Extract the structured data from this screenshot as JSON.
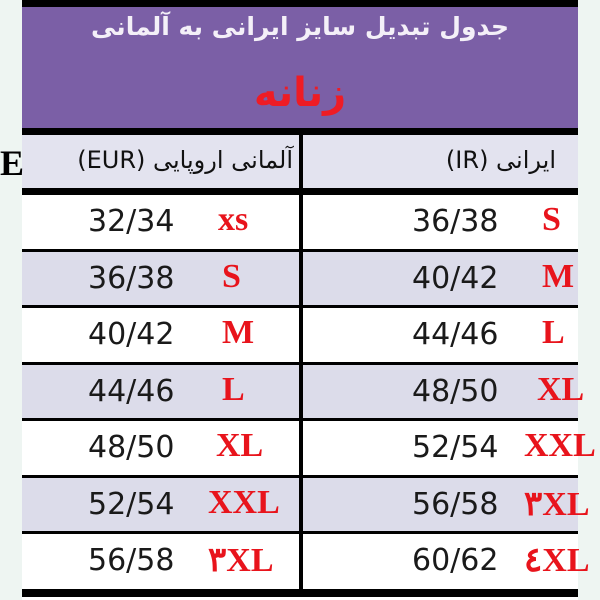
{
  "header": {
    "title": "جدول تبدیل سایز ایرانی به آلمانی",
    "subtitle": "زنانه"
  },
  "columns": {
    "left": "آلمانی اروپایی (EUR)",
    "right": "ایرانی (IR)"
  },
  "rows": [
    {
      "eur": "32/34",
      "eur_size": "xs",
      "ir": "36/38",
      "ir_size": "S"
    },
    {
      "eur": "36/38",
      "eur_size": "S",
      "ir": "40/42",
      "ir_size": "M"
    },
    {
      "eur": "40/42",
      "eur_size": "M",
      "ir": "44/46",
      "ir_size": "L"
    },
    {
      "eur": "44/46",
      "eur_size": "L",
      "ir": "48/50",
      "ir_size": "XL"
    },
    {
      "eur": "48/50",
      "eur_size": "XL",
      "ir": "52/54",
      "ir_size": "XXL"
    },
    {
      "eur": "52/54",
      "eur_size": "XXL",
      "ir": "56/58",
      "ir_size": "٣XL"
    },
    {
      "eur": "56/58",
      "eur_size": "٣XL",
      "ir": "60/62",
      "ir_size": "٤XL"
    }
  ],
  "colors": {
    "header_bg": "#7b5fa6",
    "size_label": "#e8141c",
    "row_alt": "#dcdcea"
  }
}
